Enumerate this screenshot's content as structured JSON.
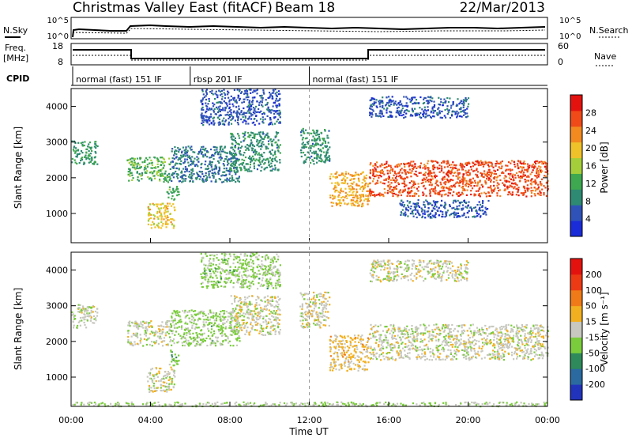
{
  "header": {
    "title": "Christmas Valley East (fitACF)",
    "beam": "Beam 18",
    "date": "22/Mar/2013"
  },
  "top_panels": {
    "nsky_label": "N.Sky",
    "nsearch_label": "N.Search",
    "noise_ticks": [
      "10^5",
      "10^0"
    ],
    "freq_label": "Freq.",
    "freq_unit": "[MHz]",
    "freq_ticks": [
      "18",
      "8"
    ],
    "nave_label": "Nave",
    "nave_ticks": [
      "60",
      "0"
    ],
    "cpid_label": "CPID",
    "cpid_segments": [
      {
        "text": "normal (fast) 151 IF",
        "start_hour": 0
      },
      {
        "text": "rbsp 201 IF",
        "start_hour": 6
      },
      {
        "text": "normal (fast) 151 IF",
        "start_hour": 12
      }
    ]
  },
  "colors": {
    "power": [
      "#1a2bd8",
      "#2f52b8",
      "#2e8a72",
      "#3ea850",
      "#a4cf3a",
      "#f0c22a",
      "#f28a20",
      "#ef4a18",
      "#e4120f"
    ],
    "velocity": [
      "#2233bb",
      "#2a6aa0",
      "#2e8a5a",
      "#7acc3c",
      "#c8c8c0",
      "#f2b020",
      "#f07a18",
      "#ec3a14",
      "#e4120f"
    ],
    "ground_scatter": "#b8b8b0"
  },
  "chart_data": [
    {
      "type": "heatmap",
      "panel": "power",
      "ylabel": "Slant Range [km]",
      "ylim": [
        180,
        4500
      ],
      "yticks": [
        1000,
        2000,
        3000,
        4000
      ],
      "xlim": [
        0,
        24
      ],
      "colorbar": {
        "label": "Power [dB]",
        "ticks": [
          "28",
          "24",
          "20",
          "16",
          "12",
          "8",
          "4"
        ],
        "range": [
          0,
          30
        ]
      },
      "regions": [
        {
          "t0": 0.0,
          "t1": 1.3,
          "r0": 2400,
          "r1": 3050,
          "value": 10
        },
        {
          "t0": 2.8,
          "t1": 5.0,
          "r0": 1900,
          "r1": 2600,
          "value": 12
        },
        {
          "t0": 3.8,
          "t1": 5.2,
          "r0": 600,
          "r1": 1300,
          "value": 18
        },
        {
          "t0": 4.8,
          "t1": 5.4,
          "r0": 1400,
          "r1": 1800,
          "value": 11
        },
        {
          "t0": 5.0,
          "t1": 8.5,
          "r0": 1900,
          "r1": 2900,
          "value": 7
        },
        {
          "t0": 8.0,
          "t1": 10.5,
          "r0": 2200,
          "r1": 3300,
          "value": 9
        },
        {
          "t0": 6.5,
          "t1": 10.5,
          "r0": 3500,
          "r1": 4500,
          "value": 5
        },
        {
          "t0": 11.5,
          "t1": 13.0,
          "r0": 2400,
          "r1": 3400,
          "value": 9
        },
        {
          "t0": 13.0,
          "t1": 15.0,
          "r0": 1200,
          "r1": 2200,
          "value": 20
        },
        {
          "t0": 15.0,
          "t1": 24.0,
          "r0": 1500,
          "r1": 2500,
          "value": 25
        },
        {
          "t0": 15.0,
          "t1": 20.0,
          "r0": 3700,
          "r1": 4300,
          "value": 5
        },
        {
          "t0": 16.5,
          "t1": 21.0,
          "r0": 900,
          "r1": 1400,
          "value": 5
        }
      ]
    },
    {
      "type": "heatmap",
      "panel": "velocity",
      "ylabel": "Slant Range [km]",
      "ylim": [
        180,
        4500
      ],
      "yticks": [
        1000,
        2000,
        3000,
        4000
      ],
      "xlim": [
        0,
        24
      ],
      "xticks": [
        "00:00",
        "04:00",
        "08:00",
        "12:00",
        "16:00",
        "20:00",
        "00:00"
      ],
      "xlabel": "Time UT",
      "colorbar": {
        "label": "Velocity [m s⁻¹]",
        "ticks": [
          "200",
          "100",
          "50",
          "15",
          "-15",
          "-50",
          "-100",
          "-200"
        ],
        "range": [
          -250,
          250
        ]
      },
      "regions": [
        {
          "t0": 0.0,
          "t1": 1.3,
          "r0": 2400,
          "r1": 3050,
          "value": 0
        },
        {
          "t0": 2.8,
          "t1": 5.0,
          "r0": 1900,
          "r1": 2600,
          "value": 0
        },
        {
          "t0": 3.8,
          "t1": 5.2,
          "r0": 600,
          "r1": 1300,
          "value": 0
        },
        {
          "t0": 4.9,
          "t1": 5.4,
          "r0": 1350,
          "r1": 1800,
          "value": -60
        },
        {
          "t0": 5.0,
          "t1": 8.5,
          "r0": 1900,
          "r1": 2900,
          "value": -40
        },
        {
          "t0": 8.0,
          "t1": 10.5,
          "r0": 2200,
          "r1": 3300,
          "value": 0
        },
        {
          "t0": 6.5,
          "t1": 10.5,
          "r0": 3500,
          "r1": 4500,
          "value": -40
        },
        {
          "t0": 11.5,
          "t1": 13.0,
          "r0": 2400,
          "r1": 3400,
          "value": 0
        },
        {
          "t0": 13.0,
          "t1": 15.0,
          "r0": 1200,
          "r1": 2200,
          "value": 40
        },
        {
          "t0": 15.0,
          "t1": 24.0,
          "r0": 1500,
          "r1": 2500,
          "value": 0
        },
        {
          "t0": 15.0,
          "t1": 20.0,
          "r0": 3700,
          "r1": 4300,
          "value": 0
        },
        {
          "t0": 0.0,
          "t1": 24.0,
          "r0": 200,
          "r1": 320,
          "value": -30
        }
      ]
    }
  ]
}
